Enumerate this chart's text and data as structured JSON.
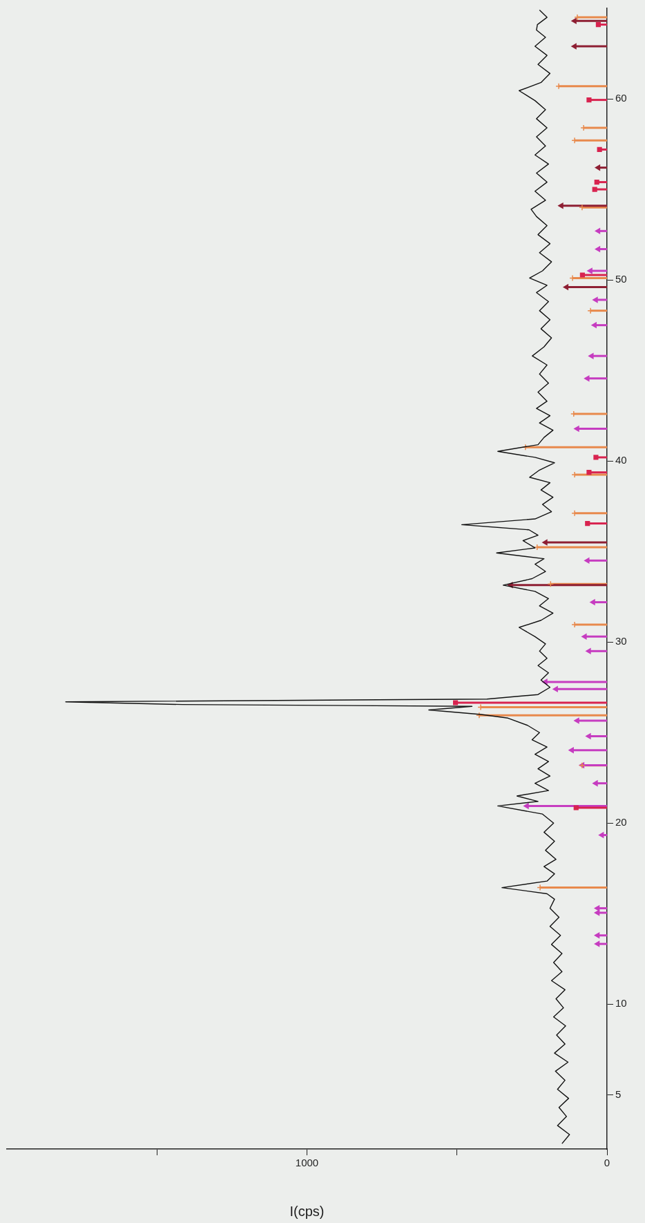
{
  "chart_data": {
    "type": "line",
    "orientation": "horizontal",
    "xlabel": "I(cps)",
    "ylim": [
      2,
      65
    ],
    "yticks": [
      5,
      10,
      20,
      30,
      40,
      50,
      60
    ],
    "xlim": [
      2000,
      0
    ],
    "xticks": [
      {
        "value": 1500,
        "label": null
      },
      1000,
      {
        "value": 500,
        "label": null
      },
      0
    ],
    "grid": false,
    "legend": false,
    "series": [
      {
        "type": "line",
        "color": "#111111",
        "marker": "none",
        "x": [
          2.3,
          2.8,
          3.3,
          3.8,
          4.3,
          4.8,
          5.3,
          5.8,
          6.3,
          6.8,
          7.3,
          7.8,
          8.3,
          8.8,
          9.3,
          9.8,
          10.3,
          10.8,
          11.3,
          11.8,
          12.3,
          12.8,
          13.3,
          13.8,
          14.3,
          14.8,
          15.3,
          15.8,
          16.1,
          16.44,
          16.8,
          17.2,
          17.6,
          18.0,
          18.5,
          19.0,
          19.5,
          20.0,
          20.5,
          20.95,
          21.2,
          21.5,
          21.8,
          22.2,
          22.6,
          23.0,
          23.4,
          23.8,
          24.2,
          24.6,
          25.0,
          25.4,
          25.8,
          26.0,
          26.25,
          26.45,
          26.55,
          26.7,
          26.85,
          27.1,
          27.5,
          27.9,
          28.3,
          28.7,
          29.1,
          29.5,
          29.9,
          30.3,
          30.81,
          31.2,
          31.6,
          32.0,
          32.4,
          32.8,
          33.14,
          33.5,
          33.9,
          34.3,
          34.6,
          34.92,
          35.2,
          35.6,
          35.9,
          36.2,
          36.48,
          36.8,
          37.2,
          37.6,
          38.0,
          38.4,
          38.8,
          39.1,
          39.5,
          39.9,
          40.2,
          40.53,
          40.9,
          41.3,
          41.7,
          42.1,
          42.5,
          42.9,
          43.3,
          43.8,
          44.3,
          44.8,
          45.3,
          45.8,
          46.3,
          46.8,
          47.3,
          47.8,
          48.3,
          48.8,
          49.3,
          49.7,
          50.1,
          50.5,
          51.0,
          51.5,
          52.0,
          52.5,
          53.0,
          53.5,
          53.9,
          54.4,
          54.9,
          55.4,
          55.9,
          56.4,
          56.9,
          57.4,
          57.9,
          58.4,
          58.9,
          59.4,
          59.9,
          60.45,
          60.9,
          61.4,
          61.9,
          62.4,
          62.9,
          63.4,
          63.8,
          64.1,
          64.5,
          64.9
        ],
        "values": [
          150,
          125,
          165,
          135,
          160,
          128,
          165,
          140,
          172,
          130,
          175,
          140,
          168,
          138,
          178,
          145,
          170,
          140,
          185,
          150,
          178,
          150,
          185,
          155,
          190,
          160,
          190,
          175,
          200,
          350,
          200,
          175,
          210,
          170,
          205,
          175,
          210,
          178,
          215,
          364,
          230,
          300,
          195,
          240,
          190,
          230,
          195,
          240,
          200,
          250,
          225,
          265,
          330,
          420,
          594,
          450,
          1415,
          1804,
          400,
          230,
          190,
          220,
          195,
          230,
          200,
          225,
          205,
          240,
          293,
          220,
          180,
          225,
          195,
          240,
          346,
          250,
          205,
          240,
          210,
          368,
          240,
          280,
          230,
          260,
          484,
          240,
          185,
          215,
          180,
          220,
          190,
          258,
          225,
          175,
          240,
          364,
          230,
          210,
          180,
          225,
          190,
          235,
          200,
          230,
          195,
          225,
          200,
          249,
          210,
          185,
          220,
          190,
          225,
          195,
          235,
          200,
          258,
          215,
          185,
          225,
          190,
          230,
          200,
          235,
          253,
          205,
          240,
          200,
          235,
          195,
          240,
          205,
          235,
          200,
          235,
          205,
          240,
          293,
          220,
          190,
          230,
          200,
          240,
          205,
          235,
          232,
          200,
          225
        ]
      },
      {
        "type": "lollipop",
        "color": "#e8894c",
        "marker": "cross",
        "x": [
          16.44,
          23.19,
          25.95,
          26.4,
          30.96,
          33.2,
          35.24,
          37.12,
          39.24,
          40.76,
          42.6,
          48.3,
          50.1,
          54.0,
          57.7,
          58.4,
          60.7,
          64.5
        ],
        "values": [
          223,
          83,
          426,
          421,
          108,
          188,
          233,
          108,
          108,
          272,
          111,
          55,
          115,
          83,
          108,
          78,
          161,
          99
        ]
      },
      {
        "type": "lollipop",
        "color": "#c63cc0",
        "marker": "triangle",
        "x": [
          13.33,
          13.8,
          15.05,
          15.3,
          19.34,
          20.95,
          22.2,
          23.2,
          24.03,
          24.8,
          25.66,
          27.4,
          27.8,
          29.5,
          30.3,
          32.2,
          34.5,
          41.78,
          44.56,
          45.8,
          47.5,
          48.9,
          50.5,
          51.7,
          52.7
        ],
        "values": [
          31,
          31,
          31,
          31,
          17,
          267,
          37,
          82,
          117,
          60,
          99,
          170,
          205,
          60,
          74,
          46,
          65,
          99,
          65,
          51,
          41,
          37,
          55,
          29,
          29
        ]
      },
      {
        "type": "lollipop",
        "color": "#d8234f",
        "marker": "square",
        "x": [
          20.85,
          26.65,
          36.55,
          39.37,
          40.2,
          50.27,
          55.0,
          55.4,
          57.2,
          59.94,
          64.1
        ],
        "values": [
          103,
          505,
          65,
          60,
          37,
          82,
          41,
          34,
          25,
          60,
          29
        ]
      },
      {
        "type": "lollipop",
        "color": "#8e1f33",
        "marker": "triangle",
        "x": [
          33.15,
          35.5,
          49.6,
          54.1,
          56.2,
          62.9,
          64.3
        ],
        "values": [
          320,
          205,
          135,
          152,
          29,
          108,
          108
        ]
      }
    ]
  }
}
